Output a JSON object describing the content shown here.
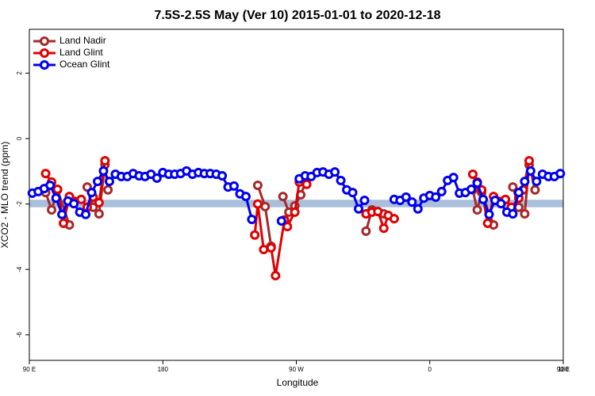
{
  "chart_data": {
    "type": "line",
    "title": "7.5S-2.5S May (Ver 10)   2015-01-01 to 2020-12-18",
    "x_label": "Longitude",
    "y_label": "XCO2 - MLO trend (ppm)",
    "xlim": [
      90,
      450
    ],
    "xticks": [
      {
        "value": 90,
        "label": "90 E"
      },
      {
        "value": 180,
        "label": "180"
      },
      {
        "value": 270,
        "label": "90 W"
      },
      {
        "value": 360,
        "label": "0"
      },
      {
        "value": 450,
        "label": "90 E"
      },
      {
        "value": 540,
        "label": "180"
      }
    ],
    "ylim": [
      -6.78,
      3.34
    ],
    "yticks": [
      2,
      0,
      -2,
      -4,
      -6
    ],
    "band": [
      -2.1,
      -1.87
    ],
    "band_color": "#a9bfdc",
    "legend": "upper left",
    "series": [
      {
        "name": "Land Nadir",
        "color": "#a52a2a",
        "x": [
          101,
          105,
          109,
          117,
          null,
          129,
          133,
          137,
          141,
          143,
          null,
          244,
          249,
          253,
          null,
          261,
          265,
          269,
          273,
          277,
          null,
          317,
          321,
          325,
          329,
          null,
          389,
          392,
          395,
          403,
          null,
          416,
          420,
          424,
          427,
          431
        ],
        "values": [
          -1.65,
          -2.18,
          -1.57,
          -2.64,
          null,
          -1.48,
          -2.1,
          -2.3,
          -0.8,
          -1.57,
          null,
          -1.43,
          -2.08,
          -3.29,
          null,
          -1.77,
          -2.25,
          -2.06,
          -1.72,
          -1.23,
          null,
          -2.83,
          -2.18,
          -2.23,
          -2.3,
          null,
          -1.57,
          -2.18,
          -1.65,
          -2.64,
          null,
          -1.48,
          -2.1,
          -2.3,
          -0.8,
          -1.57
        ]
      },
      {
        "name": "Land Glint",
        "color": "#e00000",
        "x": [
          101,
          105,
          109,
          113,
          117,
          125,
          129,
          133,
          137,
          141,
          null,
          242,
          244,
          248,
          253,
          256,
          262,
          264,
          269,
          272,
          277,
          null,
          317,
          321,
          325,
          329,
          332,
          336,
          null,
          389,
          392,
          395,
          399,
          403,
          411,
          415,
          420,
          423,
          427
        ],
        "values": [
          -1.07,
          -1.33,
          -1.55,
          -2.59,
          -1.77,
          -1.86,
          -2.1,
          -1.79,
          -1.96,
          -0.68,
          null,
          -2.95,
          -2.0,
          -3.39,
          -3.34,
          -4.19,
          -2.49,
          -2.69,
          -2.25,
          -1.33,
          -1.4,
          null,
          -2.3,
          -2.25,
          -2.23,
          -2.74,
          -2.35,
          -2.45,
          null,
          -1.09,
          -1.33,
          -1.57,
          -2.59,
          -1.77,
          -1.86,
          -2.1,
          -1.82,
          -1.57,
          -0.68
        ]
      },
      {
        "name": "Ocean Glint",
        "color": "#0000ee",
        "x": [
          92,
          96,
          100,
          104,
          108,
          112,
          116,
          120,
          124,
          128,
          132,
          136,
          140,
          144,
          148,
          152,
          156,
          160,
          164,
          168,
          172,
          176,
          180,
          184,
          188,
          192,
          196,
          200,
          204,
          208,
          212,
          216,
          220,
          224,
          228,
          232,
          236,
          240,
          null,
          260,
          null,
          272,
          276,
          280,
          284,
          288,
          292,
          296,
          300,
          304,
          308,
          312,
          316,
          null,
          336,
          340,
          344,
          348,
          352,
          356,
          360,
          364,
          368,
          372,
          376,
          380,
          384,
          388,
          392,
          396,
          400,
          404,
          408,
          412,
          416,
          420,
          424,
          428,
          432,
          436,
          440,
          444,
          448
        ],
        "values": [
          -1.67,
          -1.62,
          -1.53,
          -1.43,
          -1.82,
          -2.32,
          -1.91,
          -1.99,
          -2.25,
          -2.32,
          -1.65,
          -1.31,
          -0.99,
          -1.31,
          -1.09,
          -1.16,
          -1.16,
          -1.07,
          -1.14,
          -1.16,
          -1.09,
          -1.21,
          -1.04,
          -1.09,
          -1.09,
          -1.07,
          -0.99,
          -1.09,
          -1.04,
          -1.07,
          -1.07,
          -1.09,
          -1.14,
          -1.48,
          -1.45,
          -1.69,
          -1.77,
          -2.47,
          null,
          -2.52,
          null,
          -1.23,
          -1.14,
          -1.16,
          -1.04,
          -1.02,
          -1.09,
          -1.02,
          -1.28,
          -1.57,
          -1.65,
          -2.15,
          -1.89,
          null,
          -1.86,
          -1.89,
          -1.79,
          -1.94,
          -2.15,
          -1.82,
          -1.74,
          -1.79,
          -1.62,
          -1.28,
          -1.19,
          -1.67,
          -1.65,
          -1.55,
          -1.36,
          -1.86,
          -2.32,
          -1.89,
          -1.99,
          -2.25,
          -2.3,
          -1.65,
          -1.31,
          -0.99,
          -1.31,
          -1.09,
          -1.16,
          -1.16,
          -1.07
        ]
      }
    ]
  }
}
